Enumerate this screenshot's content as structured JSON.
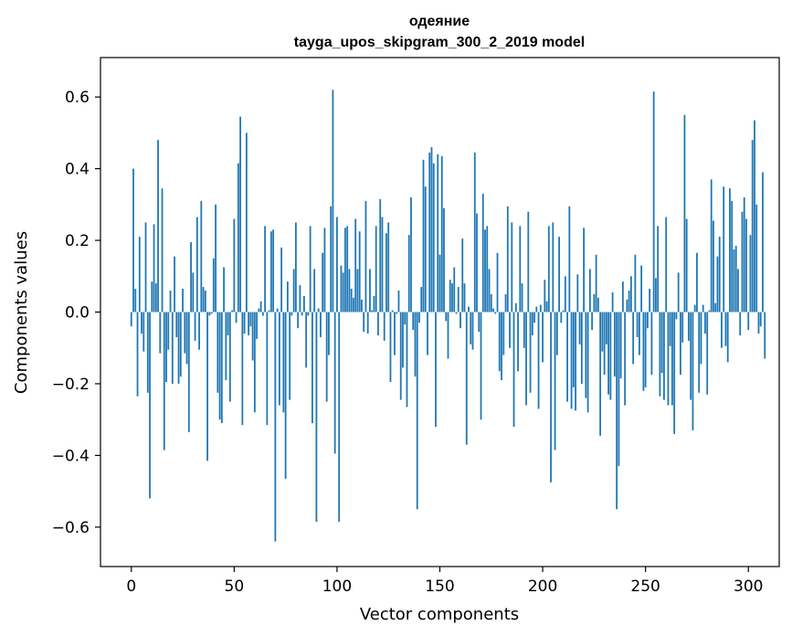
{
  "chart_data": {
    "type": "bar",
    "title": "одеяние",
    "subtitle": "tayga_upos_skipgram_300_2_2019 model",
    "xlabel": "Vector components",
    "ylabel": "Components values",
    "xlim": [
      -15,
      315
    ],
    "ylim": [
      -0.71,
      0.71
    ],
    "xticks": [
      0,
      50,
      100,
      150,
      200,
      250,
      300
    ],
    "yticks": [
      -0.6,
      -0.4,
      -0.2,
      0.0,
      0.2,
      0.4,
      0.6
    ],
    "ytick_labels": [
      "−0.6",
      "−0.4",
      "−0.2",
      "0.0",
      "0.2",
      "0.4",
      "0.6"
    ],
    "bar_color": "#1f77b4",
    "grid": false,
    "values": [
      -0.04,
      0.4,
      0.065,
      -0.235,
      0.21,
      -0.06,
      -0.11,
      0.25,
      -0.225,
      -0.52,
      0.085,
      0.245,
      0.08,
      0.48,
      -0.115,
      0.345,
      -0.385,
      -0.195,
      -0.105,
      0.06,
      -0.2,
      0.155,
      -0.07,
      -0.2,
      -0.18,
      0.065,
      -0.115,
      -0.145,
      -0.335,
      0.195,
      0.11,
      -0.08,
      0.265,
      -0.105,
      0.31,
      0.07,
      0.06,
      -0.415,
      -0.01,
      -0.005,
      0.15,
      0.3,
      -0.225,
      -0.3,
      -0.31,
      0.125,
      -0.19,
      -0.065,
      -0.25,
      0.005,
      0.26,
      -0.03,
      0.415,
      0.545,
      -0.315,
      -0.06,
      0.5,
      -0.065,
      -0.04,
      -0.135,
      -0.28,
      -0.075,
      0.01,
      0.03,
      -0.01,
      0.24,
      -0.315,
      0.005,
      0.225,
      0.23,
      -0.64,
      0.01,
      -0.26,
      0.18,
      -0.28,
      -0.465,
      0.085,
      -0.245,
      -0.01,
      0.12,
      0.25,
      -0.045,
      0.075,
      -0.01,
      0.045,
      -0.155,
      -0.01,
      0.24,
      -0.31,
      0.12,
      -0.585,
      0.01,
      -0.07,
      0.165,
      0.235,
      -0.25,
      -0.12,
      0.295,
      0.62,
      -0.395,
      0.265,
      -0.585,
      0.13,
      0.11,
      0.235,
      0.24,
      0.12,
      0.065,
      0.04,
      0.26,
      0.12,
      0.225,
      0.035,
      -0.055,
      0.31,
      -0.06,
      0.12,
      0.005,
      0.045,
      0.24,
      -0.065,
      0.315,
      0.265,
      -0.08,
      0.22,
      0.25,
      -0.195,
      0.005,
      -0.12,
      -0.005,
      0.06,
      -0.245,
      -0.155,
      -0.035,
      -0.265,
      0.215,
      0.32,
      -0.05,
      -0.18,
      -0.55,
      -0.03,
      0.07,
      0.425,
      0.35,
      -0.12,
      0.445,
      0.46,
      0.415,
      -0.32,
      0.44,
      0.16,
      0.435,
      0.29,
      -0.025,
      -0.13,
      0.09,
      0.08,
      0.125,
      -0.005,
      0.07,
      -0.045,
      0.205,
      0.08,
      -0.37,
      0.015,
      -0.09,
      -0.105,
      0.445,
      0.275,
      -0.055,
      -0.3,
      0.33,
      0.23,
      0.24,
      0.12,
      0.05,
      0.01,
      -0.005,
      0.165,
      -0.165,
      -0.19,
      -0.12,
      0.05,
      0.295,
      -0.1,
      0.25,
      -0.32,
      0.025,
      -0.165,
      0.24,
      0.08,
      -0.1,
      -0.26,
      0.28,
      -0.225,
      -0.065,
      -0.03,
      0.015,
      -0.27,
      0.02,
      -0.14,
      0.09,
      0.03,
      0.24,
      -0.475,
      0.25,
      -0.385,
      -0.12,
      0.21,
      -0.03,
      0.005,
      0.1,
      -0.25,
      0.295,
      -0.27,
      -0.21,
      -0.275,
      0.105,
      -0.09,
      -0.2,
      0.235,
      -0.24,
      -0.28,
      0.12,
      -0.05,
      0.05,
      0.16,
      0.04,
      -0.345,
      -0.11,
      -0.175,
      -0.09,
      -0.23,
      -0.245,
      0.055,
      -0.18,
      -0.55,
      -0.43,
      -0.185,
      0.085,
      -0.26,
      0.035,
      0.06,
      0.1,
      -0.145,
      0.16,
      -0.07,
      -0.12,
      0.13,
      -0.22,
      -0.21,
      -0.045,
      0.065,
      -0.175,
      0.615,
      0.095,
      0.24,
      -0.235,
      -0.17,
      -0.245,
      0.265,
      -0.26,
      -0.095,
      -0.26,
      -0.34,
      -0.02,
      0.11,
      -0.175,
      -0.085,
      0.55,
      0.26,
      -0.08,
      -0.245,
      -0.33,
      0.02,
      0.165,
      -0.225,
      -0.145,
      0.02,
      -0.06,
      -0.23,
      0.005,
      0.37,
      0.255,
      0.025,
      0.155,
      0.21,
      -0.1,
      0.35,
      -0.095,
      -0.14,
      0.345,
      0.31,
      0.175,
      0.185,
      0.12,
      -0.065,
      0.28,
      0.32,
      0.26,
      -0.05,
      0.215,
      0.48,
      0.535,
      0.3,
      -0.06,
      -0.04,
      0.39,
      -0.13
    ]
  }
}
